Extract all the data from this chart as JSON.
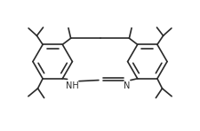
{
  "background": "#ffffff",
  "line_color": "#2a2a2a",
  "line_width": 1.2,
  "font_size_nh": 7.0,
  "font_size_n": 7.0,
  "nh_label": "NH",
  "n_label": "N",
  "figsize": [
    2.25,
    1.48
  ],
  "dpi": 100,
  "xlim": [
    0,
    10
  ],
  "ylim": [
    0,
    6.6
  ]
}
